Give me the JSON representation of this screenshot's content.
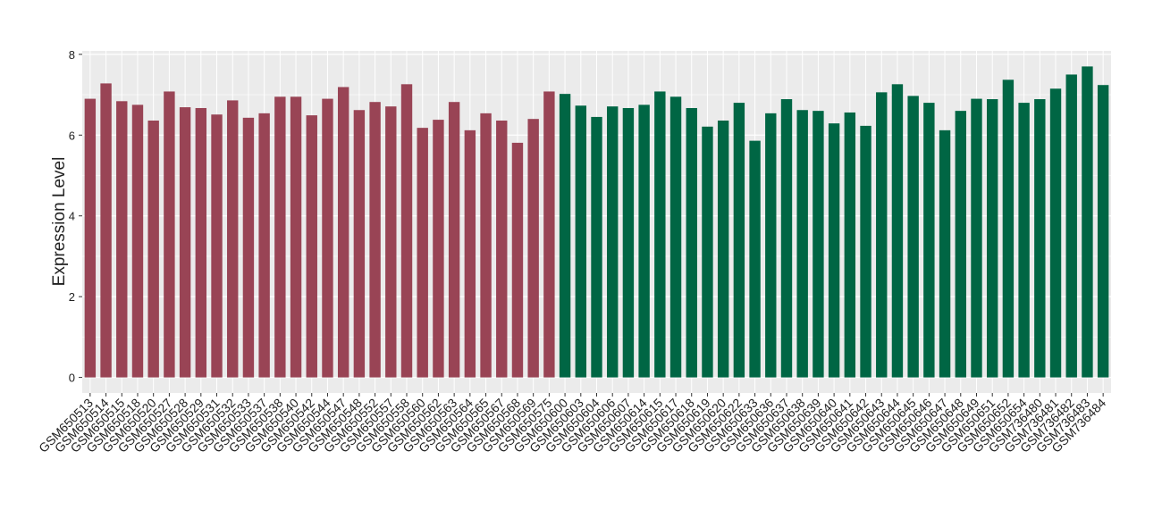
{
  "chart_data": {
    "type": "bar",
    "y_label": "Expression Level",
    "categories": [
      "GSM650513",
      "GSM650514",
      "GSM650515",
      "GSM650518",
      "GSM650520",
      "GSM650527",
      "GSM650528",
      "GSM650529",
      "GSM650531",
      "GSM650532",
      "GSM650533",
      "GSM650537",
      "GSM650538",
      "GSM650540",
      "GSM650542",
      "GSM650544",
      "GSM650547",
      "GSM650548",
      "GSM650552",
      "GSM650557",
      "GSM650558",
      "GSM650560",
      "GSM650562",
      "GSM650563",
      "GSM650564",
      "GSM650565",
      "GSM650567",
      "GSM650568",
      "GSM650569",
      "GSM650575",
      "GSM650600",
      "GSM650603",
      "GSM650604",
      "GSM650606",
      "GSM650607",
      "GSM650614",
      "GSM650615",
      "GSM650617",
      "GSM650618",
      "GSM650619",
      "GSM650620",
      "GSM650622",
      "GSM650633",
      "GSM650636",
      "GSM650637",
      "GSM650638",
      "GSM650639",
      "GSM650640",
      "GSM650641",
      "GSM650642",
      "GSM650643",
      "GSM650644",
      "GSM650645",
      "GSM650646",
      "GSM650647",
      "GSM650648",
      "GSM650649",
      "GSM650651",
      "GSM650652",
      "GSM650654",
      "GSM736480",
      "GSM736481",
      "GSM736482",
      "GSM736483",
      "GSM736484"
    ],
    "values": [
      6.9,
      7.28,
      6.84,
      6.75,
      6.36,
      7.08,
      6.69,
      6.67,
      6.51,
      6.86,
      6.43,
      6.54,
      6.95,
      6.95,
      6.49,
      6.9,
      7.19,
      6.62,
      6.82,
      6.71,
      7.26,
      6.18,
      6.38,
      6.82,
      6.12,
      6.54,
      6.36,
      5.81,
      6.4,
      7.08,
      7.02,
      6.73,
      6.45,
      6.71,
      6.67,
      6.75,
      7.08,
      6.95,
      6.67,
      6.21,
      6.36,
      6.8,
      5.86,
      6.54,
      6.89,
      6.62,
      6.6,
      6.29,
      6.56,
      6.23,
      7.06,
      7.26,
      6.97,
      6.8,
      6.12,
      6.6,
      6.9,
      6.89,
      7.37,
      6.8,
      6.89,
      7.15,
      7.5,
      7.7,
      7.24
    ],
    "bar_colors": [
      "#994455",
      "#994455",
      "#994455",
      "#994455",
      "#994455",
      "#994455",
      "#994455",
      "#994455",
      "#994455",
      "#994455",
      "#994455",
      "#994455",
      "#994455",
      "#994455",
      "#994455",
      "#994455",
      "#994455",
      "#994455",
      "#994455",
      "#994455",
      "#994455",
      "#994455",
      "#994455",
      "#994455",
      "#994455",
      "#994455",
      "#994455",
      "#994455",
      "#994455",
      "#994455",
      "#006644",
      "#006644",
      "#006644",
      "#006644",
      "#006644",
      "#006644",
      "#006644",
      "#006644",
      "#006644",
      "#006644",
      "#006644",
      "#006644",
      "#006644",
      "#006644",
      "#006644",
      "#006644",
      "#006644",
      "#006644",
      "#006644",
      "#006644",
      "#006644",
      "#006644",
      "#006644",
      "#006644",
      "#006644",
      "#006644",
      "#006644",
      "#006644",
      "#006644",
      "#006644",
      "#006644",
      "#006644",
      "#006644",
      "#006644",
      "#006644"
    ],
    "ylim": [
      -0.385,
      8.085
    ],
    "yticks": [
      0,
      2,
      4,
      6,
      8
    ],
    "grid": true
  }
}
